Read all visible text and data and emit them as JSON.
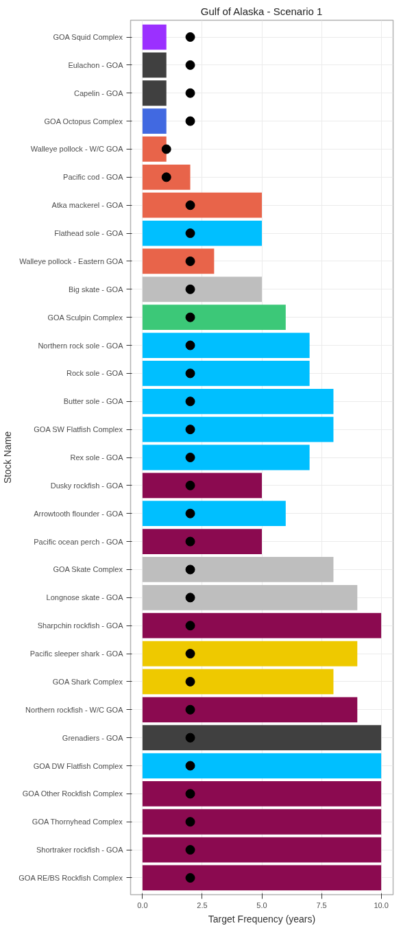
{
  "chart_data": {
    "type": "bar",
    "orientation": "horizontal",
    "title": "Gulf of Alaska - Scenario 1",
    "xlabel": "Target Frequency (years)",
    "ylabel": "Stock Name",
    "categories": [
      "GOA Squid Complex",
      "Eulachon - GOA",
      "Capelin - GOA",
      "GOA Octopus Complex",
      "Walleye pollock - W/C GOA",
      "Pacific cod - GOA",
      "Atka mackerel - GOA",
      "Flathead sole - GOA",
      "Walleye pollock - Eastern GOA",
      "Big skate - GOA",
      "GOA Sculpin Complex",
      "Northern rock sole - GOA",
      "Rock sole - GOA",
      "Butter sole - GOA",
      "GOA SW Flatfish Complex",
      "Rex sole - GOA",
      "Dusky rockfish - GOA",
      "Arrowtooth flounder - GOA",
      "Pacific ocean perch - GOA",
      "GOA Skate Complex",
      "Longnose skate - GOA",
      "Sharpchin rockfish - GOA",
      "Pacific sleeper shark - GOA",
      "GOA Shark Complex",
      "Northern rockfish - W/C GOA",
      "Grenadiers - GOA",
      "GOA DW Flatfish Complex",
      "GOA Other Rockfish Complex",
      "GOA Thornyhead Complex",
      "Shortraker rockfish - GOA",
      "GOA RE/BS Rockfish Complex"
    ],
    "series": [
      {
        "values": [
          1,
          1,
          1,
          1,
          1,
          2,
          5,
          5,
          3,
          5,
          6,
          7,
          7,
          8,
          8,
          7,
          5,
          6,
          5,
          8,
          9,
          10,
          9,
          8,
          9,
          10,
          10,
          10,
          10,
          10,
          10
        ],
        "colors": [
          "#9b30ff",
          "#404040",
          "#404040",
          "#4169e1",
          "#e8644a",
          "#e8644a",
          "#e8644a",
          "#00bfff",
          "#e8644a",
          "#bebebe",
          "#3cc878",
          "#00bfff",
          "#00bfff",
          "#00bfff",
          "#00bfff",
          "#00bfff",
          "#8b0a50",
          "#00bfff",
          "#8b0a50",
          "#bebebe",
          "#bebebe",
          "#8b0a50",
          "#eec900",
          "#eec900",
          "#8b0a50",
          "#404040",
          "#00bfff",
          "#8b0a50",
          "#8b0a50",
          "#8b0a50",
          "#8b0a50"
        ]
      },
      {
        "type": "scatter",
        "marker": "circle",
        "color": "#000000",
        "values": [
          2,
          2,
          2,
          2,
          1,
          1,
          2,
          2,
          2,
          2,
          2,
          2,
          2,
          2,
          2,
          2,
          2,
          2,
          2,
          2,
          2,
          2,
          2,
          2,
          2,
          2,
          2,
          2,
          2,
          2,
          2
        ]
      }
    ],
    "xlim": [
      -0.5,
      10.5
    ],
    "xticks": [
      {
        "value": 0,
        "label": "0.0"
      },
      {
        "value": 2.5,
        "label": "2.5"
      },
      {
        "value": 5,
        "label": "5.0"
      },
      {
        "value": 7.5,
        "label": "7.5"
      },
      {
        "value": 10,
        "label": "10.0"
      }
    ],
    "grid": true
  }
}
